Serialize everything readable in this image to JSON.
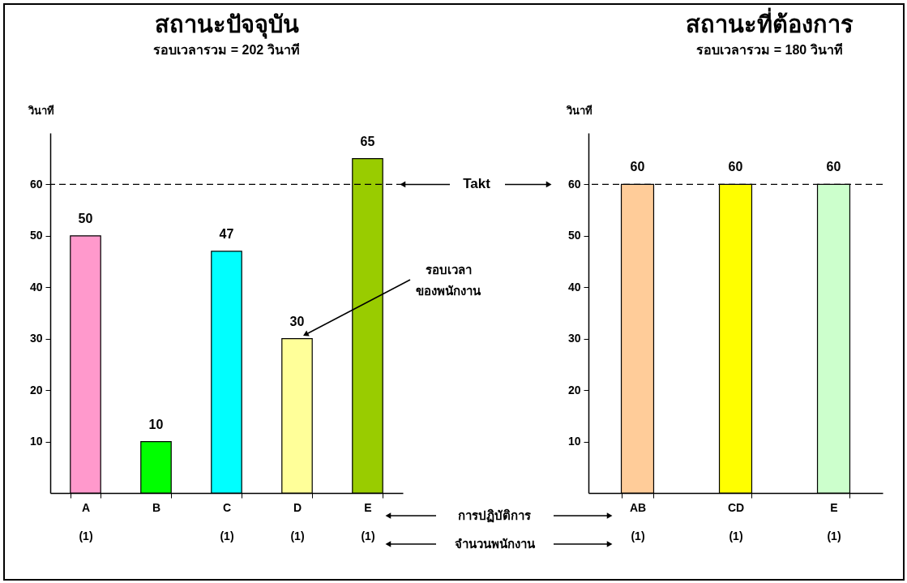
{
  "chart_data": [
    {
      "type": "bar",
      "title": "สถานะปัจจุบัน",
      "subtitle": "รอบเวลารวม = 202 วินาที",
      "ylabel": "วินาที",
      "xlabel": "การปฏิบัติการ",
      "categories": [
        "A\n(1)",
        "B",
        "C\n(1)",
        "D\n(1)",
        "E\n(1)"
      ],
      "values": [
        50,
        10,
        47,
        30,
        65
      ],
      "colors": [
        "#ff99cc",
        "#00ff00",
        "#00ffff",
        "#ffff99",
        "#99cc00"
      ],
      "ylim": [
        0,
        70
      ],
      "yticks": [
        10,
        20,
        30,
        40,
        50,
        60
      ],
      "data_labels": true,
      "ref_lines": [
        {
          "axis": "y",
          "value": 60,
          "label": "Takt",
          "line_style": "dashed"
        }
      ],
      "annotations": [
        "รอบเวลา\nของพนักงาน",
        "จำนวนพนักงาน"
      ]
    },
    {
      "type": "bar",
      "title": "สถานะที่ต้องการ",
      "subtitle": "รอบเวลารวม = 180 วินาที",
      "ylabel": "วินาที",
      "categories": [
        "AB\n(1)",
        "CD\n(1)",
        "E\n(1)"
      ],
      "values": [
        60,
        60,
        60
      ],
      "colors": [
        "#ffcc99",
        "#ffff00",
        "#ccffcc"
      ],
      "ylim": [
        0,
        70
      ],
      "yticks": [
        10,
        20,
        30,
        40,
        50,
        60
      ],
      "data_labels": true,
      "ref_lines": [
        {
          "axis": "y",
          "value": 60,
          "line_style": "dashed"
        }
      ]
    }
  ]
}
